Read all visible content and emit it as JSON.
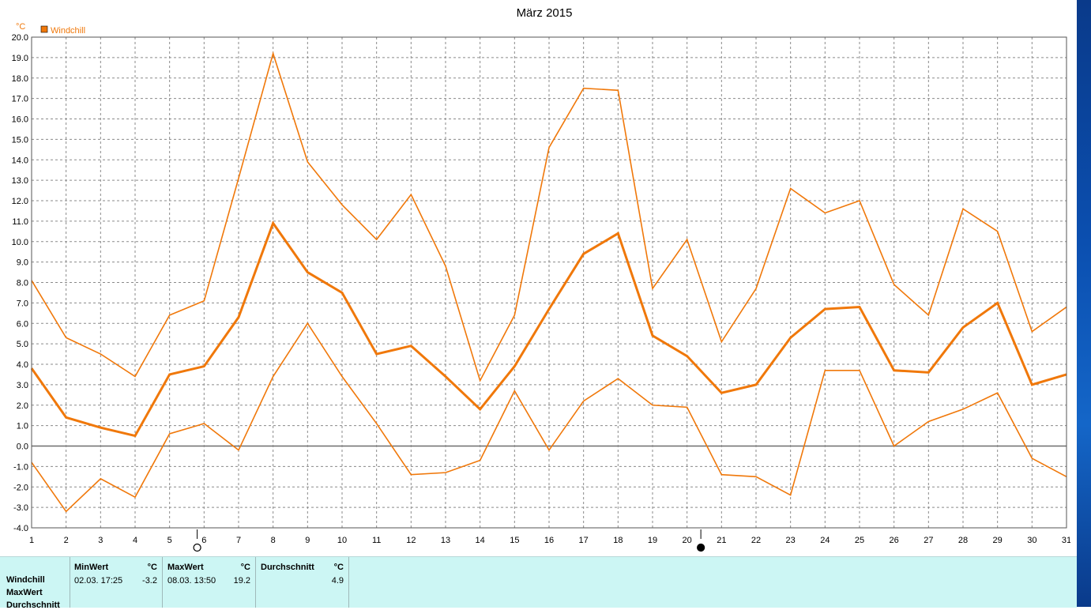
{
  "chart_data": {
    "type": "line",
    "title": "März 2015",
    "y_unit": "°C",
    "ylim": [
      -4.0,
      20.0
    ],
    "y_ticks": [
      "20.0",
      "19.0",
      "18.0",
      "17.0",
      "16.0",
      "15.0",
      "14.0",
      "13.0",
      "12.0",
      "11.0",
      "10.0",
      "9.0",
      "8.0",
      "7.0",
      "6.0",
      "5.0",
      "4.0",
      "3.0",
      "2.0",
      "1.0",
      "0.0",
      "-1.0",
      "-2.0",
      "-3.0",
      "-4.0"
    ],
    "x": [
      1,
      2,
      3,
      4,
      5,
      6,
      7,
      8,
      9,
      10,
      11,
      12,
      13,
      14,
      15,
      16,
      17,
      18,
      19,
      20,
      21,
      22,
      23,
      24,
      25,
      26,
      27,
      28,
      29,
      30,
      31
    ],
    "x_labels": [
      "1",
      "2",
      "3",
      "4",
      "5",
      "6",
      "7",
      "8",
      "9",
      "10",
      "11",
      "12",
      "13",
      "14",
      "15",
      "16",
      "17",
      "18",
      "19",
      "20",
      "21",
      "22",
      "23",
      "24",
      "25",
      "26",
      "27",
      "28",
      "29",
      "30",
      "31"
    ],
    "grid": true,
    "legend": [
      {
        "name": "Windchill",
        "color": "#f0780a"
      }
    ],
    "series": [
      {
        "name": "Max",
        "values": [
          8.1,
          5.3,
          4.5,
          3.4,
          6.4,
          7.1,
          13.1,
          19.2,
          13.9,
          11.8,
          10.1,
          12.3,
          8.8,
          3.2,
          6.4,
          14.6,
          17.5,
          17.4,
          7.7,
          10.1,
          5.1,
          7.7,
          12.6,
          11.4,
          12.0,
          7.9,
          6.4,
          11.6,
          10.5,
          5.6,
          6.8
        ],
        "bold": false
      },
      {
        "name": "Durchschnitt",
        "values": [
          3.8,
          1.4,
          0.9,
          0.5,
          3.5,
          3.9,
          6.3,
          10.9,
          8.5,
          7.5,
          4.5,
          4.9,
          3.4,
          1.8,
          3.9,
          6.7,
          9.4,
          10.4,
          5.4,
          4.4,
          2.6,
          3.0,
          5.3,
          6.7,
          6.8,
          3.7,
          3.6,
          5.8,
          7.0,
          3.0,
          3.5
        ],
        "bold": true
      },
      {
        "name": "Min",
        "values": [
          -0.8,
          -3.2,
          -1.6,
          -2.5,
          0.6,
          1.1,
          -0.2,
          3.4,
          6.0,
          3.4,
          1.1,
          -1.4,
          -1.3,
          -0.7,
          2.7,
          -0.2,
          2.2,
          3.3,
          2.0,
          1.9,
          -1.4,
          -1.5,
          -2.4,
          3.7,
          3.7,
          0.0,
          1.2,
          1.8,
          2.6,
          -0.6,
          -1.5
        ],
        "bold": false
      }
    ],
    "moon_markers": [
      {
        "x": 5.8,
        "symbol": "○"
      },
      {
        "x": 20.4,
        "symbol": "●"
      }
    ],
    "line_color": "#f0780a"
  },
  "stats": {
    "row_labels": [
      "Windchill",
      "MaxWert",
      "Durchschnitt"
    ],
    "min_header": "MinWert",
    "max_header": "MaxWert",
    "avg_header": "Durchschnitt",
    "unit": "°C",
    "min_date": "02.03.  17:25",
    "min_value": "-3.2",
    "max_date": "08.03.  13:50",
    "max_value": "19.2",
    "avg_value": "4.9"
  }
}
